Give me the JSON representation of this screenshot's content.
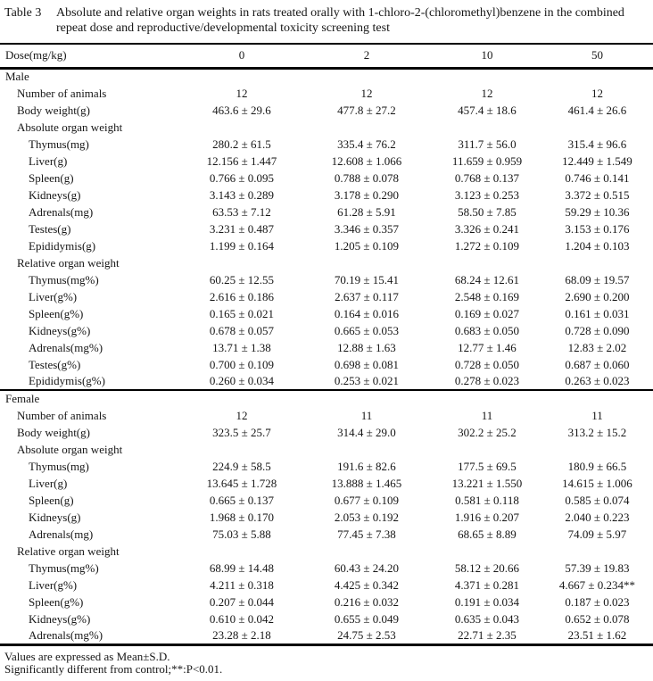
{
  "colors": {
    "background": "#ffffff",
    "text": "#161616",
    "rule": "#000000"
  },
  "table": {
    "label": "Table 3",
    "caption": "Absolute and relative organ weights in rats treated orally with 1-chloro-2-(chloromethyl)benzene in the combined repeat dose and reproductive/developmental toxicity screening test",
    "header": {
      "label": "Dose(mg/kg)",
      "doses": [
        "0",
        "2",
        "10",
        "50"
      ]
    },
    "rows": [
      {
        "label": "Male",
        "indent": 0,
        "values": [
          "",
          "",
          "",
          ""
        ]
      },
      {
        "label": "Number of animals",
        "indent": 1,
        "values": [
          "12",
          "12",
          "12",
          "12"
        ]
      },
      {
        "label": "Body weight(g)",
        "indent": 1,
        "values": [
          "463.6 ± 29.6",
          "477.8 ± 27.2",
          "457.4 ± 18.6",
          "461.4 ± 26.6"
        ]
      },
      {
        "label": "Absolute organ weight",
        "indent": 1,
        "values": [
          "",
          "",
          "",
          ""
        ]
      },
      {
        "label": "Thymus(mg)",
        "indent": 2,
        "values": [
          "280.2 ± 61.5",
          "335.4 ± 76.2",
          "311.7 ± 56.0",
          "315.4 ± 96.6"
        ]
      },
      {
        "label": "Liver(g)",
        "indent": 2,
        "values": [
          "12.156 ± 1.447",
          "12.608 ± 1.066",
          "11.659 ± 0.959",
          "12.449 ± 1.549"
        ]
      },
      {
        "label": "Spleen(g)",
        "indent": 2,
        "values": [
          "0.766 ± 0.095",
          "0.788 ± 0.078",
          "0.768 ± 0.137",
          "0.746 ± 0.141"
        ]
      },
      {
        "label": "Kidneys(g)",
        "indent": 2,
        "values": [
          "3.143 ± 0.289",
          "3.178 ± 0.290",
          "3.123 ± 0.253",
          "3.372 ± 0.515"
        ]
      },
      {
        "label": "Adrenals(mg)",
        "indent": 2,
        "values": [
          "63.53 ± 7.12",
          "61.28 ± 5.91",
          "58.50 ± 7.85",
          "59.29 ± 10.36"
        ]
      },
      {
        "label": "Testes(g)",
        "indent": 2,
        "values": [
          "3.231 ± 0.487",
          "3.346 ± 0.357",
          "3.326 ± 0.241",
          "3.153 ± 0.176"
        ]
      },
      {
        "label": "Epididymis(g)",
        "indent": 2,
        "values": [
          "1.199 ± 0.164",
          "1.205 ± 0.109",
          "1.272 ± 0.109",
          "1.204 ± 0.103"
        ]
      },
      {
        "label": "Relative organ weight",
        "indent": 1,
        "values": [
          "",
          "",
          "",
          ""
        ]
      },
      {
        "label": "Thymus(mg%)",
        "indent": 2,
        "values": [
          "60.25 ± 12.55",
          "70.19 ± 15.41",
          "68.24 ± 12.61",
          "68.09 ± 19.57"
        ]
      },
      {
        "label": "Liver(g%)",
        "indent": 2,
        "values": [
          "2.616 ± 0.186",
          "2.637 ± 0.117",
          "2.548 ± 0.169",
          "2.690 ± 0.200"
        ]
      },
      {
        "label": "Spleen(g%)",
        "indent": 2,
        "values": [
          "0.165 ± 0.021",
          "0.164 ± 0.016",
          "0.169 ± 0.027",
          "0.161 ± 0.031"
        ]
      },
      {
        "label": "Kidneys(g%)",
        "indent": 2,
        "values": [
          "0.678 ± 0.057",
          "0.665 ± 0.053",
          "0.683 ± 0.050",
          "0.728 ± 0.090"
        ]
      },
      {
        "label": "Adrenals(mg%)",
        "indent": 2,
        "values": [
          "13.71 ± 1.38",
          "12.88 ± 1.63",
          "12.77 ± 1.46",
          "12.83 ± 2.02"
        ]
      },
      {
        "label": "Testes(g%)",
        "indent": 2,
        "values": [
          "0.700 ± 0.109",
          "0.698 ± 0.081",
          "0.728 ± 0.050",
          "0.687 ± 0.060"
        ]
      },
      {
        "label": "Epididymis(g%)",
        "indent": 2,
        "values": [
          "0.260 ± 0.034",
          "0.253 ± 0.021",
          "0.278 ± 0.023",
          "0.263 ± 0.023"
        ]
      },
      {
        "label": "Female",
        "indent": 0,
        "rule_above": true,
        "values": [
          "",
          "",
          "",
          ""
        ]
      },
      {
        "label": "Number of animals",
        "indent": 1,
        "values": [
          "12",
          "11",
          "11",
          "11"
        ]
      },
      {
        "label": "Body weight(g)",
        "indent": 1,
        "values": [
          "323.5 ± 25.7",
          "314.4 ± 29.0",
          "302.2 ± 25.2",
          "313.2 ± 15.2"
        ]
      },
      {
        "label": "Absolute organ weight",
        "indent": 1,
        "values": [
          "",
          "",
          "",
          ""
        ]
      },
      {
        "label": "Thymus(mg)",
        "indent": 2,
        "values": [
          "224.9 ± 58.5",
          "191.6 ± 82.6",
          "177.5 ± 69.5",
          "180.9 ± 66.5"
        ]
      },
      {
        "label": "Liver(g)",
        "indent": 2,
        "values": [
          "13.645 ± 1.728",
          "13.888 ± 1.465",
          "13.221 ± 1.550",
          "14.615 ± 1.006"
        ]
      },
      {
        "label": "Spleen(g)",
        "indent": 2,
        "values": [
          "0.665 ± 0.137",
          "0.677 ± 0.109",
          "0.581 ± 0.118",
          "0.585 ± 0.074"
        ]
      },
      {
        "label": "Kidneys(g)",
        "indent": 2,
        "values": [
          "1.968 ± 0.170",
          "2.053 ± 0.192",
          "1.916 ± 0.207",
          "2.040 ± 0.223"
        ]
      },
      {
        "label": "Adrenals(mg)",
        "indent": 2,
        "values": [
          "75.03 ± 5.88",
          "77.45 ± 7.38",
          "68.65 ± 8.89",
          "74.09 ± 5.97"
        ]
      },
      {
        "label": "Relative organ weight",
        "indent": 1,
        "values": [
          "",
          "",
          "",
          ""
        ]
      },
      {
        "label": "Thymus(mg%)",
        "indent": 2,
        "values": [
          "68.99 ± 14.48",
          "60.43 ± 24.20",
          "58.12 ± 20.66",
          "57.39 ± 19.83"
        ]
      },
      {
        "label": "Liver(g%)",
        "indent": 2,
        "values": [
          "4.211 ± 0.318",
          "4.425 ± 0.342",
          "4.371 ± 0.281",
          "4.667 ± 0.234**"
        ]
      },
      {
        "label": "Spleen(g%)",
        "indent": 2,
        "values": [
          "0.207 ± 0.044",
          "0.216 ± 0.032",
          "0.191 ± 0.034",
          "0.187 ± 0.023"
        ]
      },
      {
        "label": "Kidneys(g%)",
        "indent": 2,
        "values": [
          "0.610 ± 0.042",
          "0.655 ± 0.049",
          "0.635 ± 0.043",
          "0.652 ± 0.078"
        ]
      },
      {
        "label": "Adrenals(mg%)",
        "indent": 2,
        "values": [
          "23.28 ± 2.18",
          "24.75 ± 2.53",
          "22.71 ± 2.35",
          "23.51 ± 1.62"
        ]
      }
    ],
    "footnotes": [
      "Values are expressed as Mean±S.D.",
      "Significantly different from control;**:P<0.01."
    ]
  }
}
